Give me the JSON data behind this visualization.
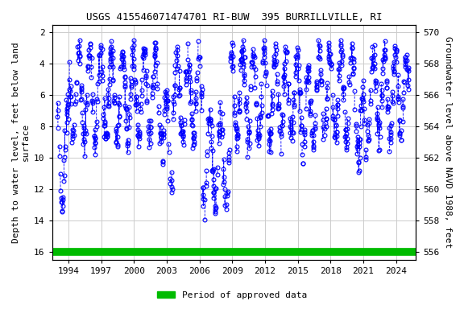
{
  "title": "USGS 415546071474701 RI-BUW  395 BURRILLVILLE, RI",
  "ylabel_left": "Depth to water level, feet below land\nsurface",
  "ylabel_right": "Groundwater level above NAVD 1988, feet",
  "ylim_left": [
    16.5,
    1.5
  ],
  "ylim_right": [
    555.5,
    570.5
  ],
  "xlim": [
    1992.5,
    2025.8
  ],
  "xticks": [
    1994,
    1997,
    2000,
    2003,
    2006,
    2009,
    2012,
    2015,
    2018,
    2021,
    2024
  ],
  "yticks_left": [
    2,
    4,
    6,
    8,
    10,
    12,
    14,
    16
  ],
  "yticks_right": [
    556,
    558,
    560,
    562,
    564,
    566,
    568,
    570
  ],
  "marker_color": "#0000ff",
  "bar_color": "#00bb00",
  "background_color": "#ffffff",
  "grid_color": "#cccccc",
  "title_fontsize": 9,
  "axis_fontsize": 8,
  "tick_fontsize": 8,
  "legend_label": "Period of approved data",
  "seed": 123
}
